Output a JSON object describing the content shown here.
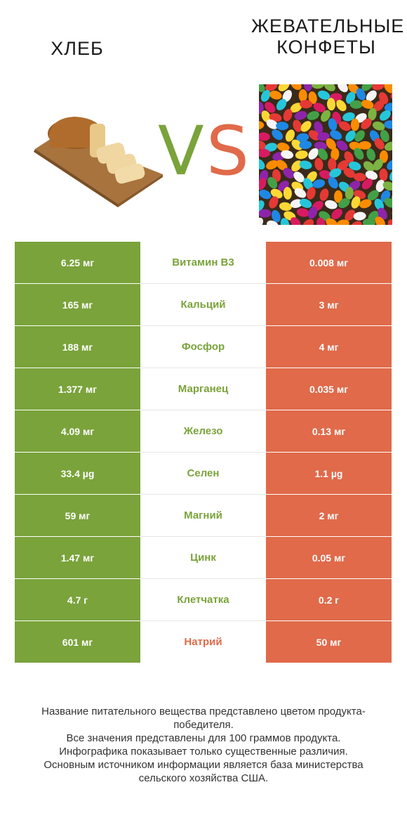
{
  "products": {
    "left": {
      "name": "ХЛЕБ",
      "image": "bread-loaf-on-cutting-board",
      "color": "#7aa33b"
    },
    "right": {
      "name": "ЖЕВАТЕЛЬНЫЕ КОНФЕТЫ",
      "image": "colorful-jelly-beans",
      "color": "#e06a4a"
    }
  },
  "vs": {
    "v": "V",
    "s": "S"
  },
  "chart_data": {
    "type": "table",
    "columns": [
      "ХЛЕБ",
      "",
      "ЖЕВАТЕЛЬНЫЕ КОНФЕТЫ"
    ],
    "rows": [
      {
        "nutrient": "Витамин B3",
        "left": "6.25 мг",
        "right": "0.008 мг",
        "winner": "left"
      },
      {
        "nutrient": "Кальций",
        "left": "165 мг",
        "right": "3 мг",
        "winner": "left"
      },
      {
        "nutrient": "Фосфор",
        "left": "188 мг",
        "right": "4 мг",
        "winner": "left"
      },
      {
        "nutrient": "Марганец",
        "left": "1.377 мг",
        "right": "0.035 мг",
        "winner": "left"
      },
      {
        "nutrient": "Железо",
        "left": "4.09 мг",
        "right": "0.13 мг",
        "winner": "left"
      },
      {
        "nutrient": "Селен",
        "left": "33.4 µg",
        "right": "1.1 µg",
        "winner": "left"
      },
      {
        "nutrient": "Магний",
        "left": "59 мг",
        "right": "2 мг",
        "winner": "left"
      },
      {
        "nutrient": "Цинк",
        "left": "1.47 мг",
        "right": "0.05 мг",
        "winner": "left"
      },
      {
        "nutrient": "Клетчатка",
        "left": "4.7 г",
        "right": "0.2 г",
        "winner": "left"
      },
      {
        "nutrient": "Натрий",
        "left": "601 мг",
        "right": "50 мг",
        "winner": "right"
      }
    ]
  },
  "footnote": "Название питательного вещества представлено цветом продукта-победителя.\nВсе значения представлены для 100 граммов продукта.\nИнфографика показывает только существенные различия.\nОсновным источником информации является база министерства сельского хозяйства США."
}
